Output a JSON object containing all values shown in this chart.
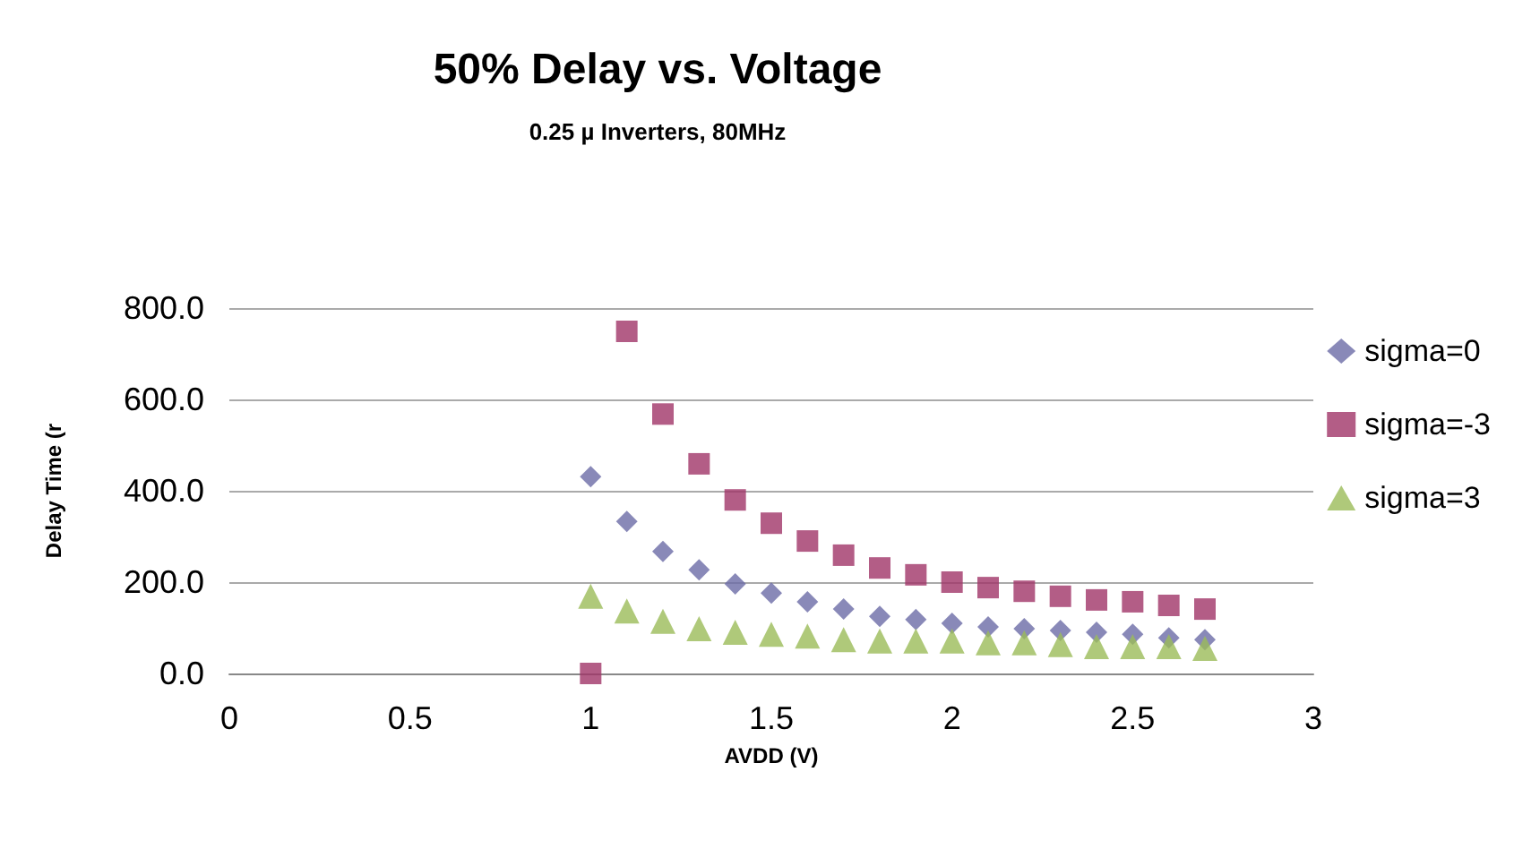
{
  "chart_data": {
    "type": "scatter",
    "title": "50% Delay vs. Voltage",
    "subtitle": "0.25 µ Inverters, 80MHz",
    "xlabel": "AVDD (V)",
    "ylabel": "Delay Time (r",
    "x": [
      1,
      1.1,
      1.2,
      1.3,
      1.4,
      1.5,
      1.6,
      1.7,
      1.8,
      1.9,
      2,
      2.1,
      2.2,
      2.3,
      2.4,
      2.5,
      2.6,
      2.7
    ],
    "series": [
      {
        "name": "sigma=0",
        "color": "#6b6ba6",
        "marker": "diamond",
        "values": [
          431,
          333,
          267,
          227,
          196,
          176,
          157,
          141,
          125,
          118,
          110,
          102,
          98,
          94,
          90,
          86,
          78,
          74
        ]
      },
      {
        "name": "sigma=-3",
        "color": "#a03468",
        "marker": "square",
        "values": [
          0,
          749,
          568,
          459,
          380,
          329,
          290,
          259,
          231,
          216,
          200,
          188,
          180,
          169,
          161,
          157,
          149,
          141
        ]
      },
      {
        "name": "sigma=3",
        "color": "#9bbb59",
        "marker": "triangle",
        "values": [
          169,
          137,
          114,
          98,
          90,
          86,
          82,
          74,
          71,
          71,
          71,
          67,
          67,
          63,
          59,
          59,
          59,
          55
        ]
      }
    ],
    "xlim": [
      0,
      3
    ],
    "xticks": [
      0,
      0.5,
      1,
      1.5,
      2,
      2.5,
      3
    ],
    "ylim": [
      0,
      800
    ],
    "yticks": [
      {
        "value": 0,
        "label": "0.0"
      },
      {
        "value": 200,
        "label": "200.0"
      },
      {
        "value": 400,
        "label": "400.0"
      },
      {
        "value": 600,
        "label": "600.0"
      },
      {
        "value": 800,
        "label": "800.0"
      }
    ],
    "grid": "y",
    "legend": "right"
  }
}
